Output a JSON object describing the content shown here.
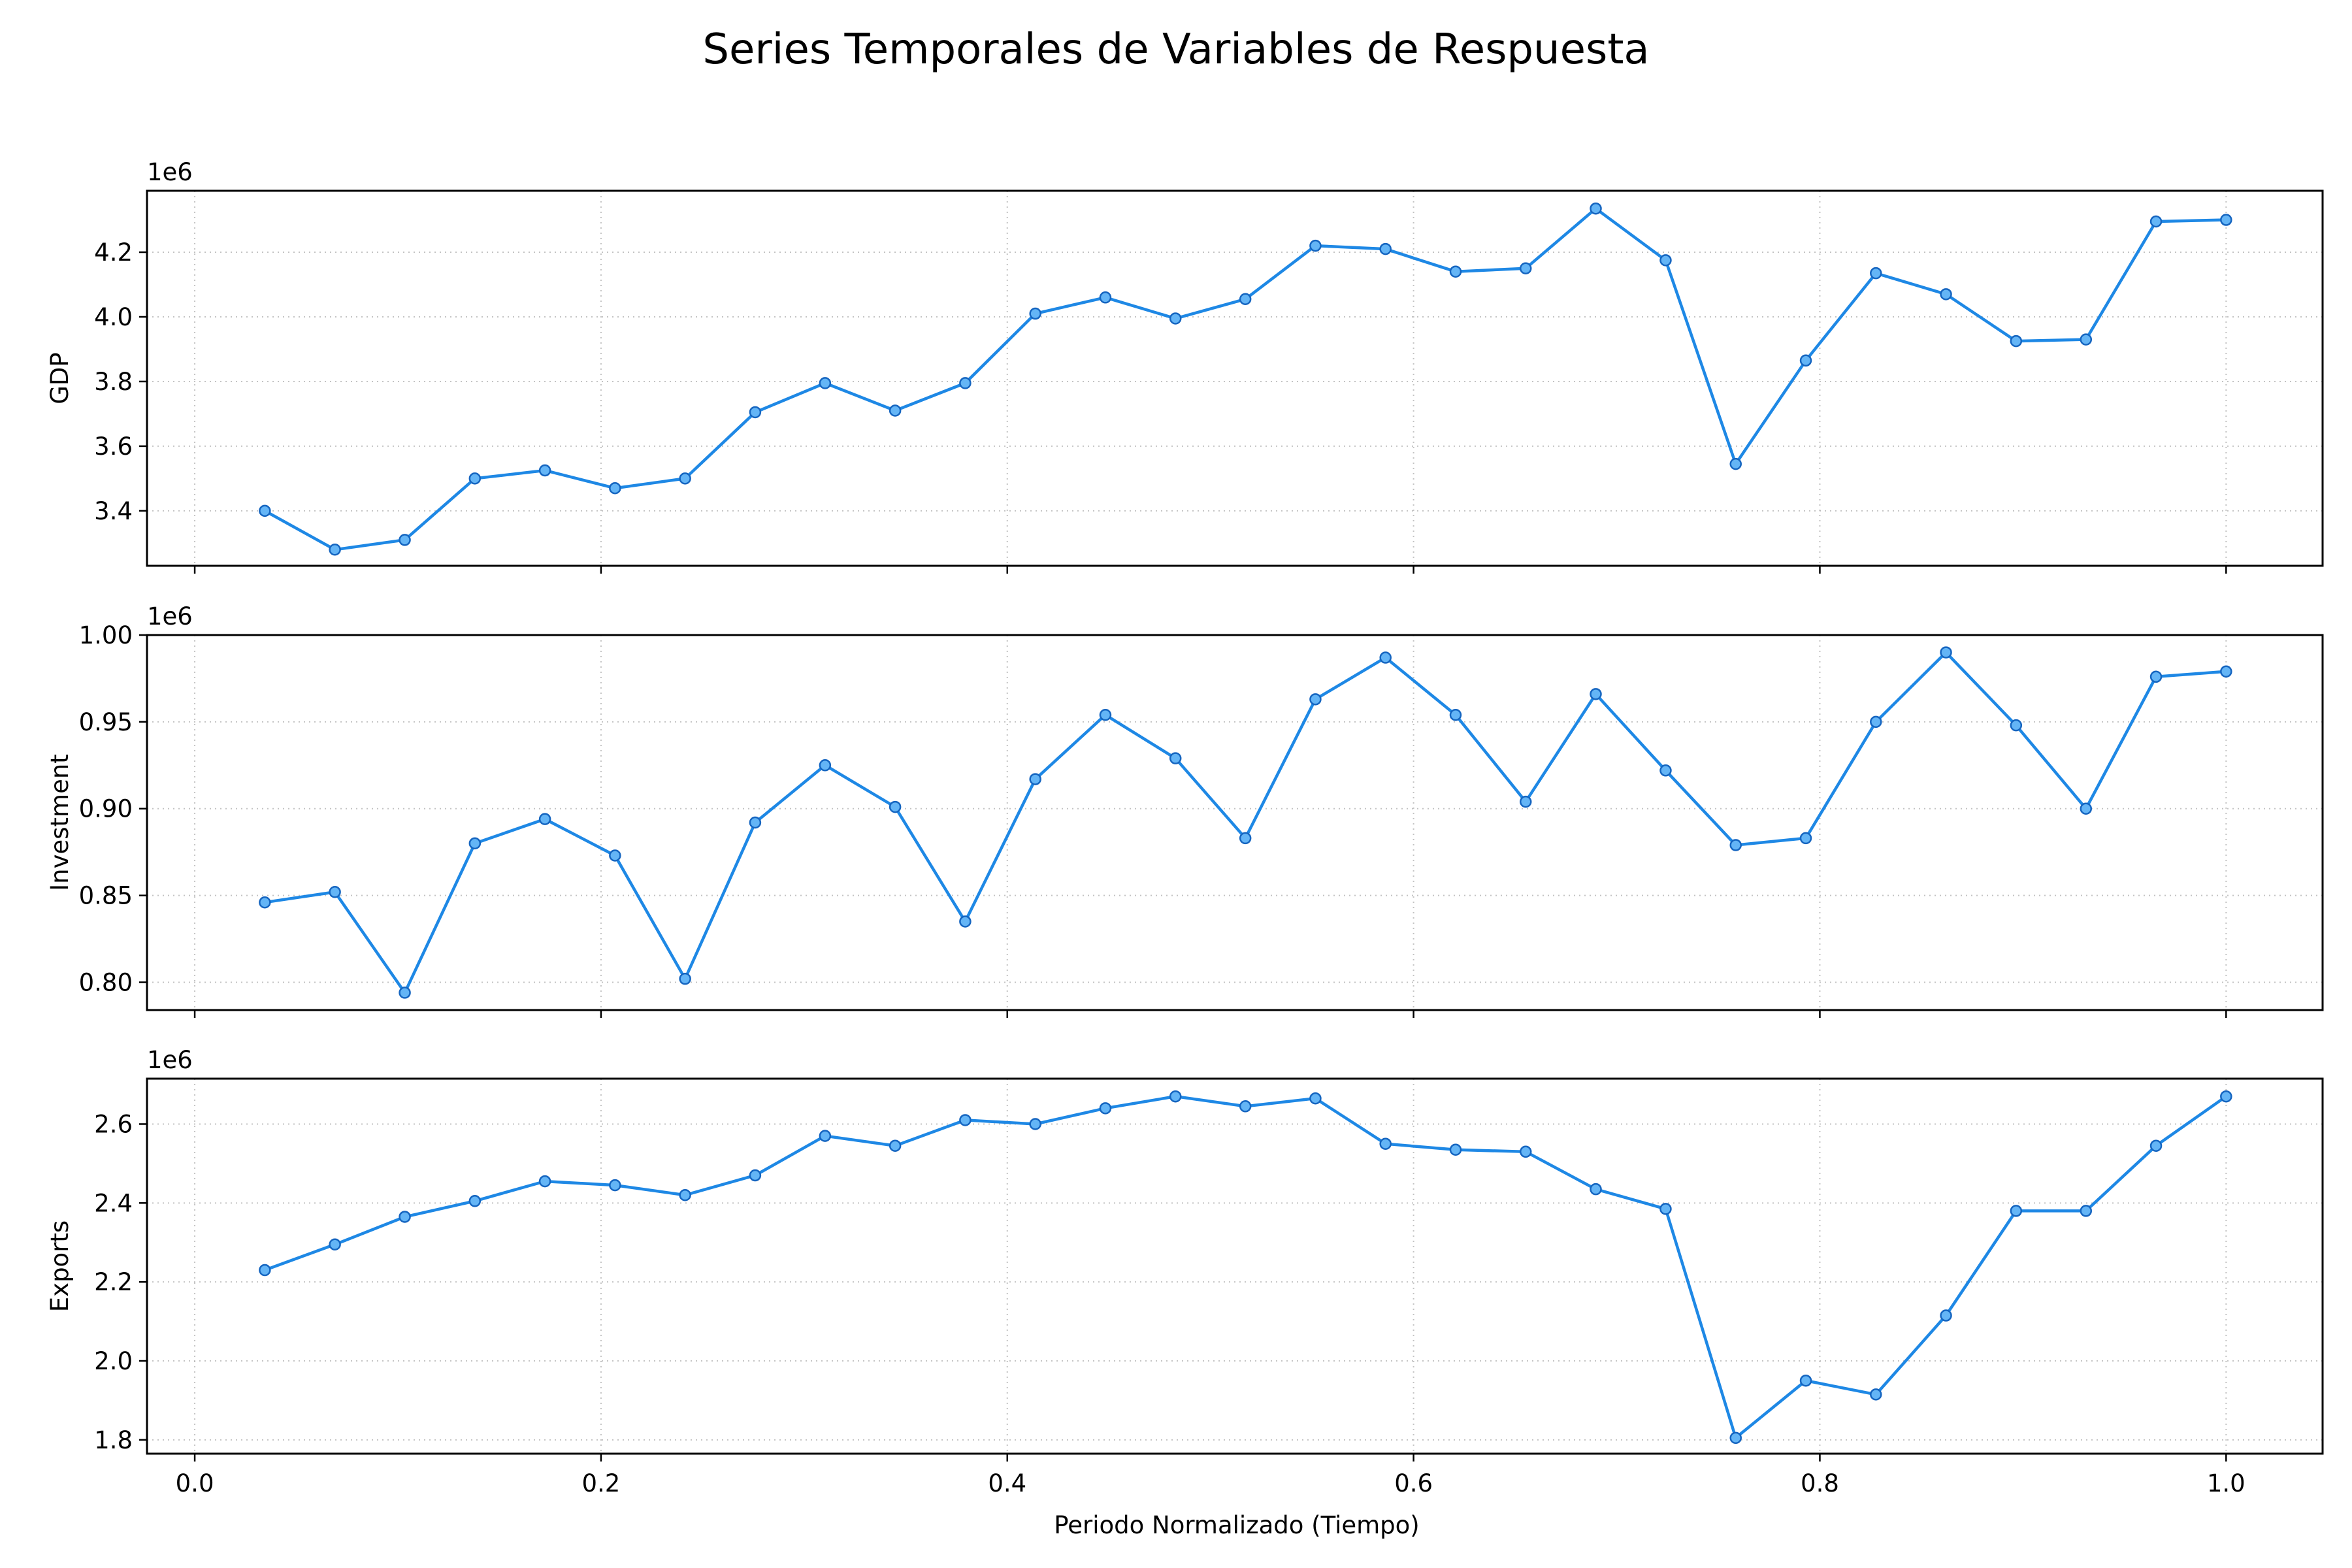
{
  "chart_data": {
    "type": "line",
    "title": "Series Temporales de Variables de Respuesta",
    "xlabel": "Periodo Normalizado (Tiempo)",
    "xlim": [
      -0.0235,
      1.0475
    ],
    "x_ticks": [
      0.0,
      0.2,
      0.4,
      0.6,
      0.8,
      1.0
    ],
    "x_tick_labels": [
      "0.0",
      "0.2",
      "0.4",
      "0.6",
      "0.8",
      "1.0"
    ],
    "x": [
      0.0345,
      0.069,
      0.1034,
      0.1379,
      0.1724,
      0.2069,
      0.2414,
      0.2759,
      0.3103,
      0.3448,
      0.3793,
      0.4138,
      0.4483,
      0.4828,
      0.5172,
      0.5517,
      0.5862,
      0.6207,
      0.6552,
      0.6897,
      0.7241,
      0.7586,
      0.7931,
      0.8276,
      0.8621,
      0.8966,
      0.931,
      0.9655,
      1.0
    ],
    "grid": true,
    "color": "#1e88e5",
    "panels": [
      {
        "ylabel": "GDP",
        "offset_label": "1e6",
        "ylim": [
          3.23,
          4.39
        ],
        "y_ticks": [
          3.4,
          3.6,
          3.8,
          4.0,
          4.2
        ],
        "y_tick_labels": [
          "3.4",
          "3.6",
          "3.8",
          "4.0",
          "4.2"
        ],
        "values": [
          3.4,
          3.28,
          3.31,
          3.5,
          3.525,
          3.47,
          3.5,
          3.705,
          3.795,
          3.71,
          3.795,
          4.01,
          4.06,
          3.995,
          4.055,
          4.22,
          4.21,
          4.14,
          4.15,
          4.335,
          4.175,
          3.545,
          3.865,
          4.135,
          4.07,
          3.925,
          3.93,
          4.295,
          4.3
        ]
      },
      {
        "ylabel": "Investment",
        "offset_label": "1e6",
        "ylim": [
          0.784,
          1.0
        ],
        "y_ticks": [
          0.8,
          0.85,
          0.9,
          0.95,
          1.0
        ],
        "y_tick_labels": [
          "0.80",
          "0.85",
          "0.90",
          "0.95",
          "1.00"
        ],
        "values": [
          0.846,
          0.852,
          0.794,
          0.88,
          0.894,
          0.873,
          0.802,
          0.892,
          0.925,
          0.901,
          0.835,
          0.917,
          0.954,
          0.929,
          0.883,
          0.963,
          0.987,
          0.954,
          0.904,
          0.966,
          0.922,
          0.879,
          0.883,
          0.95,
          0.99,
          0.948,
          0.9,
          0.976,
          0.979
        ]
      },
      {
        "ylabel": "Exports",
        "offset_label": "1e6",
        "ylim": [
          1.765,
          2.715
        ],
        "y_ticks": [
          1.8,
          2.0,
          2.2,
          2.4,
          2.6
        ],
        "y_tick_labels": [
          "1.8",
          "2.0",
          "2.2",
          "2.4",
          "2.6"
        ],
        "values": [
          2.23,
          2.295,
          2.365,
          2.405,
          2.455,
          2.445,
          2.42,
          2.47,
          2.57,
          2.545,
          2.61,
          2.6,
          2.64,
          2.67,
          2.645,
          2.665,
          2.55,
          2.535,
          2.53,
          2.435,
          2.385,
          1.805,
          1.95,
          1.915,
          2.115,
          2.38,
          2.38,
          2.545,
          2.67
        ]
      }
    ]
  }
}
